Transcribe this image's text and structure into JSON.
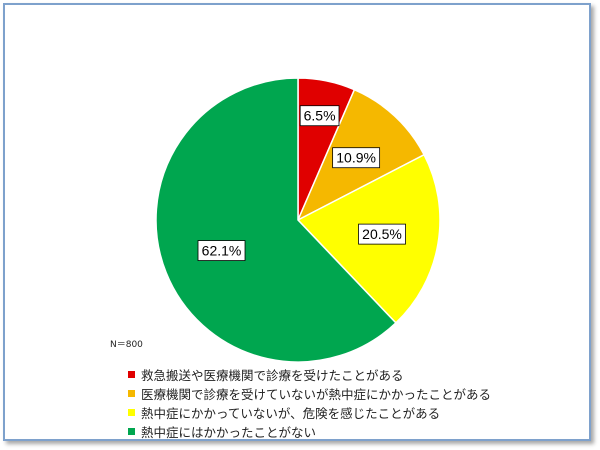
{
  "chart_data": {
    "type": "pie",
    "categories": [
      "救急搬送や医療機関で診療を受けたことがある",
      "医療機関で診療を受けていないが熱中症にかかったことがある",
      "熱中症にかかっていないが、危険を感じたことがある",
      "熱中症にはかかったことがない"
    ],
    "values": [
      6.5,
      10.9,
      20.5,
      62.1
    ],
    "value_labels": [
      "6.5%",
      "10.9%",
      "20.5%",
      "62.1%"
    ],
    "colors": [
      "#e00000",
      "#f5b800",
      "#ffff00",
      "#00a64f"
    ],
    "legend_position": "bottom",
    "annotation": "N＝800"
  }
}
